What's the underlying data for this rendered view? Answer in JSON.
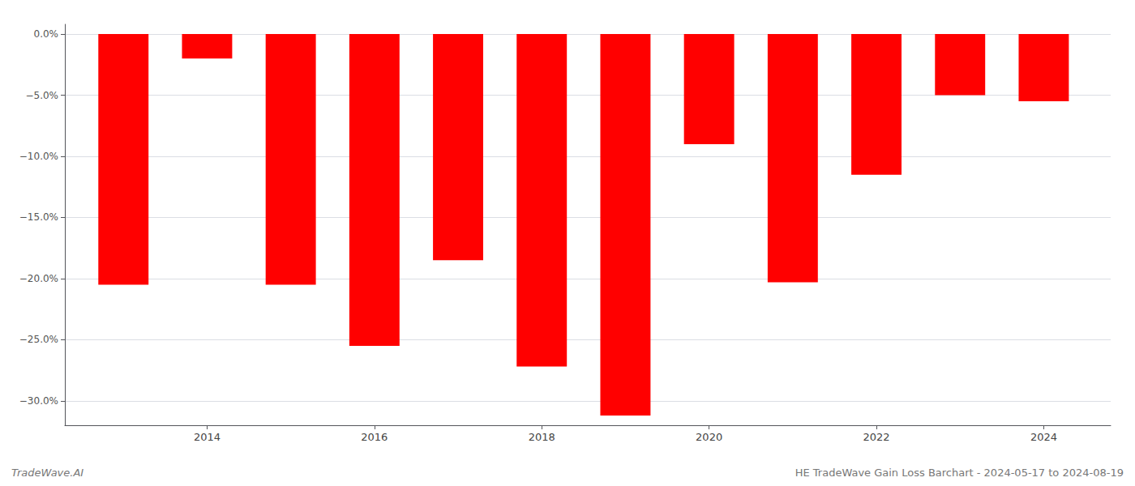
{
  "chart_data": {
    "type": "bar",
    "x": [
      2013,
      2014,
      2015,
      2016,
      2017,
      2018,
      2019,
      2020,
      2021,
      2022,
      2023,
      2024
    ],
    "values": [
      -20.5,
      -2.0,
      -20.5,
      -25.5,
      -18.5,
      -27.2,
      -31.2,
      -9.0,
      -20.3,
      -11.5,
      -5.0,
      -5.5
    ],
    "color": "#ff0000",
    "xlim": [
      2012.3,
      2024.8
    ],
    "xticks": [
      2014,
      2016,
      2018,
      2020,
      2022,
      2024
    ],
    "ylim": [
      -32,
      0.8
    ],
    "yticks": [
      {
        "value": 0,
        "label": "0.0%"
      },
      {
        "value": -5,
        "label": "−5.0%"
      },
      {
        "value": -10,
        "label": "−10.0%"
      },
      {
        "value": -15,
        "label": "−15.0%"
      },
      {
        "value": -20,
        "label": "−20.0%"
      },
      {
        "value": -25,
        "label": "−25.0%"
      },
      {
        "value": -30,
        "label": "−30.0%"
      }
    ],
    "grid": true,
    "annotations": [
      "TradeWave.AI",
      "HE TradeWave Gain Loss Barchart - 2024-05-17 to 2024-08-19"
    ]
  }
}
